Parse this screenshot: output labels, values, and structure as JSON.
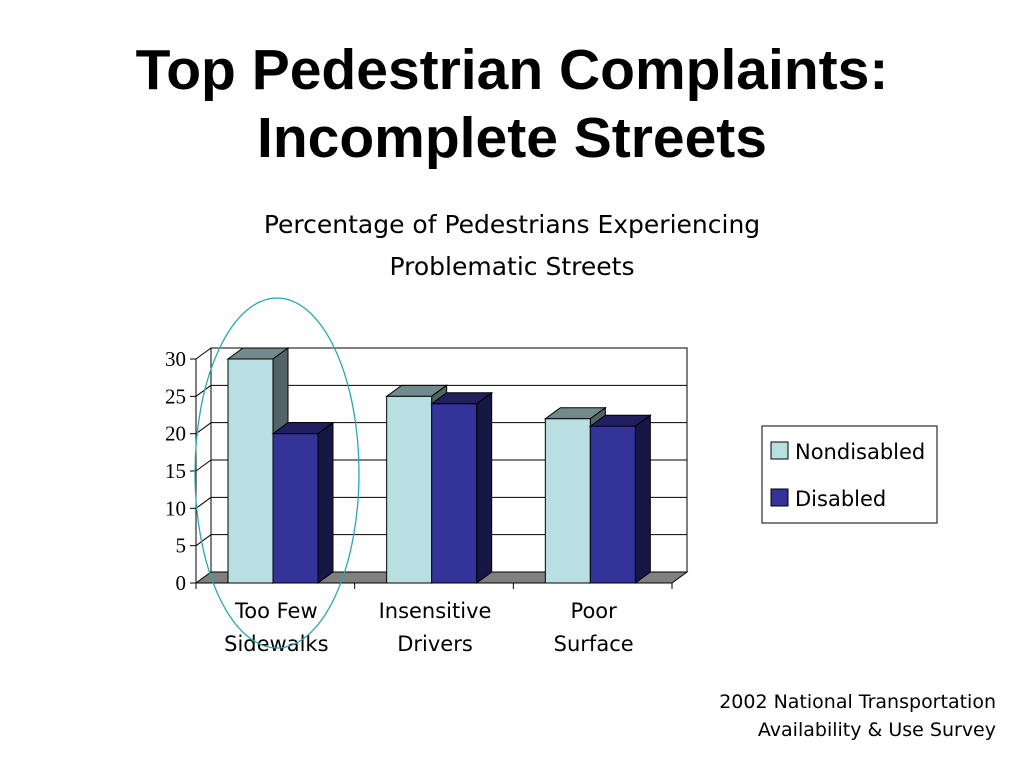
{
  "slide": {
    "title_lines": [
      "Top Pedestrian Complaints:",
      "Incomplete Streets"
    ],
    "source_lines": [
      "2002 National Transportation",
      "Availability & Use Survey"
    ]
  },
  "chart_data": {
    "type": "bar",
    "title_lines": [
      "Percentage of Pedestrians Experiencing",
      "Problematic Streets"
    ],
    "categories": [
      [
        "Too Few",
        "Sidewalks"
      ],
      [
        "Insensitive",
        "Drivers"
      ],
      [
        "Poor",
        "Surface"
      ]
    ],
    "series": [
      {
        "name": "Nondisabled",
        "values": [
          30,
          25,
          22
        ],
        "color": "#b9dfe3"
      },
      {
        "name": "Disabled",
        "values": [
          20,
          24,
          21
        ],
        "color": "#333399"
      }
    ],
    "ylim": [
      0,
      30
    ],
    "yticks": [
      0,
      5,
      10,
      15,
      20,
      25,
      30
    ],
    "grid": true,
    "legend": "right",
    "style": "3d-clustered-column",
    "highlight": "ellipse around Too Few Sidewalks",
    "colors": {
      "highlight": "#2aa6b4",
      "floor": "#808080"
    }
  }
}
